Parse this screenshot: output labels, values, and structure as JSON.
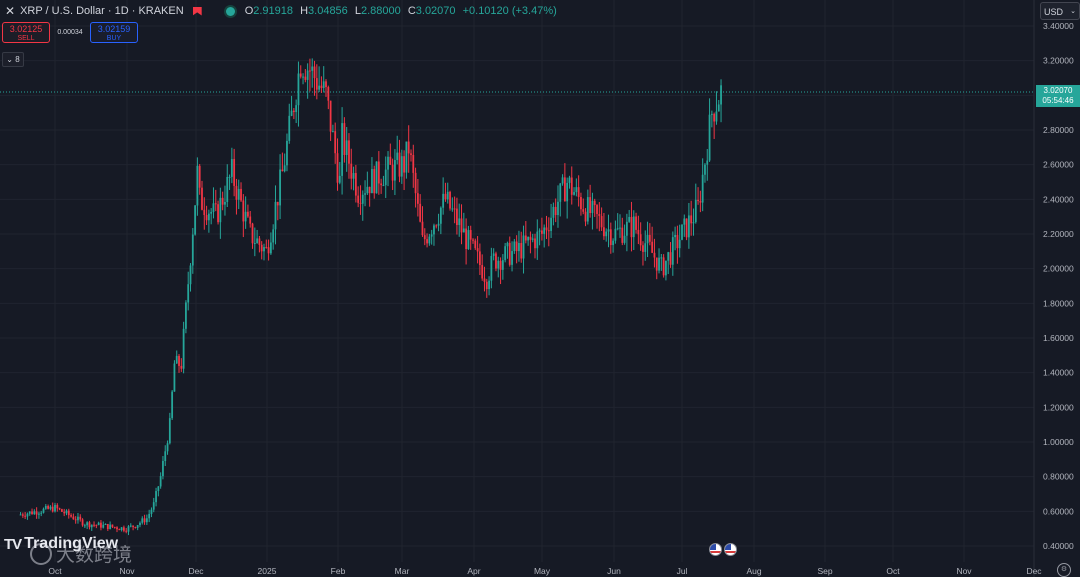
{
  "header": {
    "symbol": "XRP / U.S. Dollar · 1D · KRAKEN",
    "ohlc": [
      {
        "k": "O",
        "v": "2.91918"
      },
      {
        "k": "H",
        "v": "3.04856"
      },
      {
        "k": "L",
        "v": "2.88000"
      },
      {
        "k": "C",
        "v": "3.02070"
      },
      {
        "k": "",
        "v": "+0.10120 (+3.47%)"
      }
    ],
    "sell": {
      "price": "3.02125",
      "label": "SELL"
    },
    "buy": {
      "price": "3.02159",
      "label": "BUY"
    },
    "spread": "0.00034",
    "indicators_count": "8",
    "currency": "USD"
  },
  "price_badge": {
    "price": "3.02070",
    "countdown": "05:54:46"
  },
  "watermark": {
    "brand": "TradingView",
    "overlay": "大数跨境"
  },
  "colors": {
    "up": "#26a69a",
    "down": "#f23645",
    "background": "#161a25",
    "grid": "#20242f"
  },
  "icons": [
    "remove-x-icon",
    "flag-icon",
    "market-status-dot-icon",
    "chevron-down-icon",
    "tv-logo-icon",
    "settings-icon",
    "us-flag-icon"
  ],
  "chart_data": {
    "type": "line",
    "title": "XRP / U.S. Dollar · 1D · KRAKEN",
    "y_axis": {
      "range": [
        0.35,
        3.45
      ],
      "ticks": [
        "3.40000",
        "3.20000",
        "3.00000",
        "2.80000",
        "2.60000",
        "2.40000",
        "2.20000",
        "2.00000",
        "1.80000",
        "1.60000",
        "1.40000",
        "1.20000",
        "1.00000",
        "0.80000",
        "0.60000",
        "0.40000"
      ]
    },
    "x_axis": {
      "ticks": [
        "Oct",
        "Nov",
        "Dec",
        "2025",
        "Feb",
        "Mar",
        "Apr",
        "May",
        "Jun",
        "Jul",
        "Aug",
        "Sep",
        "Oct",
        "Nov",
        "Dec"
      ]
    },
    "last_price": 3.0207,
    "series": [
      {
        "x": [
          "2024-09-15",
          "2024-10-01",
          "2024-10-14",
          "2024-11-01",
          "2024-11-05",
          "2024-11-10",
          "2024-11-13",
          "2024-11-16",
          "2024-11-20",
          "2024-11-22",
          "2024-11-25",
          "2024-12-02",
          "2024-12-03",
          "2024-12-10",
          "2024-12-17",
          "2024-12-25",
          "2025-01-01",
          "2025-01-08",
          "2025-01-16",
          "2025-01-20",
          "2025-01-27",
          "2025-02-02",
          "2025-02-03",
          "2025-02-10",
          "2025-02-20",
          "2025-03-02",
          "2025-03-04",
          "2025-03-10",
          "2025-03-20",
          "2025-04-01",
          "2025-04-07",
          "2025-04-10",
          "2025-04-20",
          "2025-05-01",
          "2025-05-12",
          "2025-05-20",
          "2025-06-01",
          "2025-06-10",
          "2025-06-20",
          "2025-06-22",
          "2025-07-01",
          "2025-07-08",
          "2025-07-14",
          "2025-07-18"
        ],
        "close": [
          0.58,
          0.62,
          0.53,
          0.5,
          0.52,
          0.56,
          0.64,
          0.8,
          1.1,
          1.45,
          1.45,
          2.55,
          2.4,
          2.3,
          2.55,
          2.2,
          2.1,
          2.55,
          3.2,
          3.15,
          3.0,
          2.5,
          2.75,
          2.45,
          2.55,
          2.6,
          2.7,
          2.15,
          2.4,
          2.1,
          1.95,
          2.05,
          2.1,
          2.2,
          2.5,
          2.35,
          2.2,
          2.25,
          2.05,
          2.0,
          2.2,
          2.35,
          2.9,
          3.02
        ]
      }
    ]
  }
}
